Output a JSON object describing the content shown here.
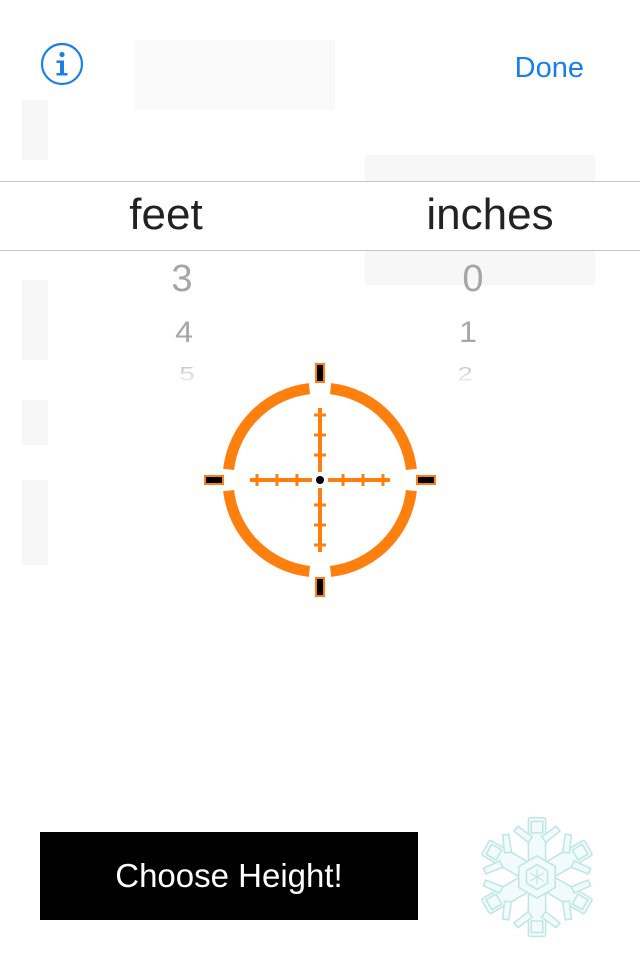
{
  "header": {
    "info_icon": "info-icon",
    "done_label": "Done"
  },
  "picker": {
    "feet_label": "feet",
    "inches_label": "inches",
    "feet_values": [
      "3",
      "4",
      "5"
    ],
    "inches_values": [
      "0",
      "1",
      "2"
    ]
  },
  "overlay": {
    "icon": "crosshair-icon",
    "color": "#ff7f0e"
  },
  "footer": {
    "choose_label": "Choose Height!",
    "logo_icon": "snowflake-icon"
  }
}
